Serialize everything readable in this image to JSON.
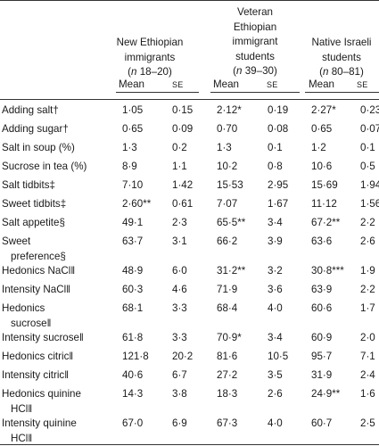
{
  "groups": [
    {
      "line1": "New Ethiopian",
      "line2": "immigrants",
      "n_label": "n",
      "n_range": " 18–20)"
    },
    {
      "line0": "Veteran",
      "line1": "Ethiopian",
      "line2": "immigrant",
      "line3": "students",
      "n_label": "n",
      "n_range": " 39–30)"
    },
    {
      "line1": "Native Israeli",
      "line2": "students",
      "n_label": "n",
      "n_range": " 80–81)"
    }
  ],
  "col_headers": {
    "mean": "Mean",
    "se": "SE"
  },
  "rows": [
    {
      "label": [
        "Adding salt†"
      ],
      "v": [
        "1·05",
        "0·15",
        "2·12*",
        "0·19",
        "2·27*",
        "0·23"
      ]
    },
    {
      "label": [
        "Adding sugar†"
      ],
      "v": [
        "0·65",
        "0·09",
        "0·70",
        "0·08",
        "0·65",
        "0·07"
      ]
    },
    {
      "label": [
        "Salt in soup (%)"
      ],
      "v": [
        "1·3",
        "0·2",
        "1·3",
        "0·1",
        "1·2",
        "0·1"
      ]
    },
    {
      "label": [
        "Sucrose in tea (%)"
      ],
      "v": [
        "8·9",
        "1·1",
        "10·2",
        "0·8",
        "10·6",
        "0·5"
      ]
    },
    {
      "label": [
        "Salt tidbits‡"
      ],
      "v": [
        "7·10",
        "1·42",
        "15·53",
        "2·95",
        "15·69",
        "1·94"
      ]
    },
    {
      "label": [
        "Sweet tidbits‡"
      ],
      "v": [
        "2·60**",
        "0·61",
        "7·07",
        "1·67",
        "11·12",
        "1·56"
      ]
    },
    {
      "label": [
        "Salt appetite§"
      ],
      "v": [
        "49·1",
        "2·3",
        "65·5**",
        "3·4",
        "67·2**",
        "2·2"
      ]
    },
    {
      "label": [
        "Sweet",
        "preference§"
      ],
      "v": [
        "63·7",
        "3·1",
        "66·2",
        "3·9",
        "63·6",
        "2·6"
      ]
    },
    {
      "label": [
        "Hedonics NaCl‖"
      ],
      "v": [
        "48·9",
        "6·0",
        "31·2**",
        "3·2",
        "30·8***",
        "1·9"
      ]
    },
    {
      "label": [
        "Intensity NaCl‖"
      ],
      "v": [
        "60·3",
        "4·6",
        "71·9",
        "3·6",
        "63·9",
        "2·2"
      ]
    },
    {
      "label": [
        "Hedonics",
        "sucrose‖"
      ],
      "v": [
        "68·1",
        "3·3",
        "68·4",
        "4·0",
        "60·6",
        "1·7"
      ]
    },
    {
      "label": [
        "Intensity sucrose‖"
      ],
      "v": [
        "61·8",
        "3·3",
        "70·9*",
        "3·4",
        "60·9",
        "2·0"
      ]
    },
    {
      "label": [
        "Hedonics citric‖"
      ],
      "v": [
        "121·8",
        "20·2",
        "81·6",
        "10·5",
        "95·7",
        "7·1"
      ]
    },
    {
      "label": [
        "Intensity citric‖"
      ],
      "v": [
        "40·6",
        "6·7",
        "27·2",
        "3·5",
        "31·9",
        "2·4"
      ]
    },
    {
      "label": [
        "Hedonics quinine",
        "HCl‖"
      ],
      "v": [
        "14·3",
        "3·8",
        "18·3",
        "2·6",
        "24·9**",
        "1·6"
      ]
    },
    {
      "label": [
        "Intensity quinine",
        "HCl‖"
      ],
      "v": [
        "67·0",
        "6·9",
        "67·3",
        "4·0",
        "60·7",
        "2·5"
      ]
    }
  ]
}
